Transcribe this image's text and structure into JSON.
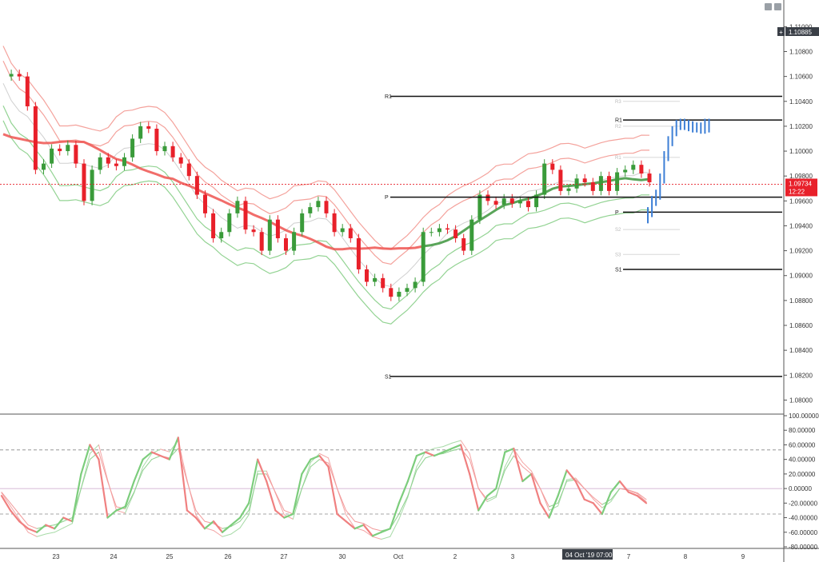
{
  "chart_data": {
    "type": "line",
    "symbol_price": "1.10885",
    "current_price": "1.09734",
    "countdown": "12:22",
    "crosshair_label": "04 Oct '19  07:00",
    "price_axis": {
      "ylim": [
        1.079,
        1.1115
      ],
      "ticks": [
        "1.11000",
        "1.10800",
        "1.10600",
        "1.10400",
        "1.10200",
        "1.10000",
        "1.09800",
        "1.09600",
        "1.09400",
        "1.09200",
        "1.09000",
        "1.08800",
        "1.08600",
        "1.08400",
        "1.08200",
        "1.08000"
      ],
      "tick_values": [
        1.11,
        1.108,
        1.106,
        1.104,
        1.102,
        1.1,
        1.098,
        1.096,
        1.094,
        1.092,
        1.09,
        1.088,
        1.086,
        1.084,
        1.082,
        1.08
      ]
    },
    "osc_axis": {
      "ylim": [
        -80,
        100
      ],
      "ticks": [
        "100.00000",
        "80.00000",
        "60.00000",
        "40.00000",
        "20.00000",
        "0.00000",
        "-20.00000",
        "-40.00000",
        "-60.00000",
        "-80.00000"
      ],
      "tick_values": [
        100,
        80,
        60,
        40,
        20,
        0,
        -20,
        -40,
        -60,
        -80
      ],
      "dashed_levels": [
        53,
        0,
        -35
      ]
    },
    "x_axis": {
      "labels": [
        "23",
        "24",
        "25",
        "26",
        "27",
        "30",
        "Oct",
        "2",
        "3",
        "7",
        "8",
        "9"
      ]
    },
    "pivot_levels": {
      "weekly": [
        {
          "label": "R1",
          "value": 1.1044
        },
        {
          "label": "P",
          "value": 1.0963
        },
        {
          "label": "S1",
          "value": 1.0819
        }
      ],
      "daily": [
        {
          "label": "R1",
          "value": 1.1025
        },
        {
          "label": "P",
          "value": 1.0951
        },
        {
          "label": "S1",
          "value": 1.0905
        }
      ],
      "daily_faint": [
        {
          "label": "R3",
          "value": 1.104
        },
        {
          "label": "R2",
          "value": 1.102
        },
        {
          "label": "R1",
          "value": 1.0995
        },
        {
          "label": "S2",
          "value": 1.0937
        },
        {
          "label": "S3",
          "value": 1.0917
        }
      ]
    },
    "colors": {
      "up": "#3a9b3a",
      "down": "#e8202a",
      "ma_slow": "#ef5350",
      "ma_slow_green": "#5aa55a",
      "band_red": "#f4a29c",
      "band_green": "#93d393",
      "mid_grey": "#cfcfcf",
      "projection": "#3d7fd6",
      "osc_fast": "#f08080",
      "osc_fast_green": "#7ccd7c",
      "current_price_bg": "#e8202a",
      "symbol_price_bg": "#3a3f47"
    },
    "series": [
      {
        "kind": "close",
        "values": [
          1.106,
          1.1062,
          1.106,
          1.1036,
          1.0985,
          1.099,
          1.1002,
          1.1,
          1.1005,
          1.099,
          1.096,
          1.0985,
          1.0995,
          1.099,
          1.0988,
          1.0995,
          1.101,
          1.102,
          1.1018,
          1.1,
          1.1004,
          1.0995,
          1.099,
          1.098,
          1.0965,
          1.095,
          1.093,
          1.0935,
          1.095,
          1.096,
          1.0937,
          1.0935,
          1.092,
          1.0945,
          1.093,
          1.092,
          1.0935,
          1.095,
          1.0955,
          1.096,
          1.095,
          1.0935,
          1.0938,
          1.093,
          1.0905,
          1.0895,
          1.0898,
          1.089,
          1.0883,
          1.0887,
          1.089,
          1.0895,
          1.0935,
          1.0935,
          1.0938,
          1.0937,
          1.093,
          1.092,
          1.0945,
          1.0965,
          1.096,
          1.0957,
          1.0962,
          1.0958,
          1.096,
          1.0955,
          1.0965,
          1.099,
          1.0985,
          1.0968,
          1.097,
          1.0978,
          1.0975,
          1.0968,
          1.098,
          1.0968,
          1.0983,
          1.0985,
          1.0989,
          1.0982,
          1.0975
        ]
      },
      {
        "kind": "projection",
        "values": [
          1.0951,
          1.096,
          1.0965,
          1.0978,
          1.0996,
          1.1008,
          1.1016,
          1.1021,
          1.1022,
          1.1021,
          1.102,
          1.1019,
          1.1019,
          1.1018,
          1.1022,
          1.1019
        ]
      },
      {
        "kind": "oscillator_fast",
        "values": [
          -10,
          -30,
          -45,
          -55,
          -60,
          -50,
          -55,
          -40,
          -45,
          20,
          60,
          40,
          -40,
          -30,
          -25,
          10,
          40,
          50,
          45,
          40,
          70,
          -30,
          -40,
          -55,
          -45,
          -60,
          -50,
          -40,
          -20,
          40,
          10,
          -30,
          -40,
          -35,
          20,
          40,
          45,
          30,
          -35,
          -45,
          -55,
          -50,
          -65,
          -60,
          -55,
          -20,
          10,
          45,
          50,
          45,
          50,
          55,
          60,
          20,
          -30,
          -10,
          0,
          50,
          55,
          10,
          20,
          -20,
          -40,
          -10,
          25,
          10,
          -15,
          -20,
          -35,
          -5,
          10,
          -5,
          -10,
          -20
        ]
      },
      {
        "kind": "oscillator_slow",
        "values": [
          -5,
          -20,
          -35,
          -50,
          -55,
          -52,
          -50,
          -45,
          -40,
          0,
          40,
          50,
          10,
          -25,
          -28,
          -5,
          25,
          40,
          45,
          42,
          55,
          10,
          -30,
          -45,
          -48,
          -55,
          -52,
          -45,
          -30,
          20,
          20,
          -5,
          -30,
          -35,
          0,
          30,
          40,
          35,
          0,
          -30,
          -45,
          -48,
          -55,
          -58,
          -55,
          -35,
          -10,
          25,
          42,
          46,
          48,
          52,
          55,
          40,
          0,
          -15,
          -10,
          25,
          45,
          30,
          20,
          0,
          -25,
          -20,
          10,
          12,
          0,
          -12,
          -22,
          -15,
          0,
          -2,
          -6,
          -15
        ]
      }
    ]
  }
}
